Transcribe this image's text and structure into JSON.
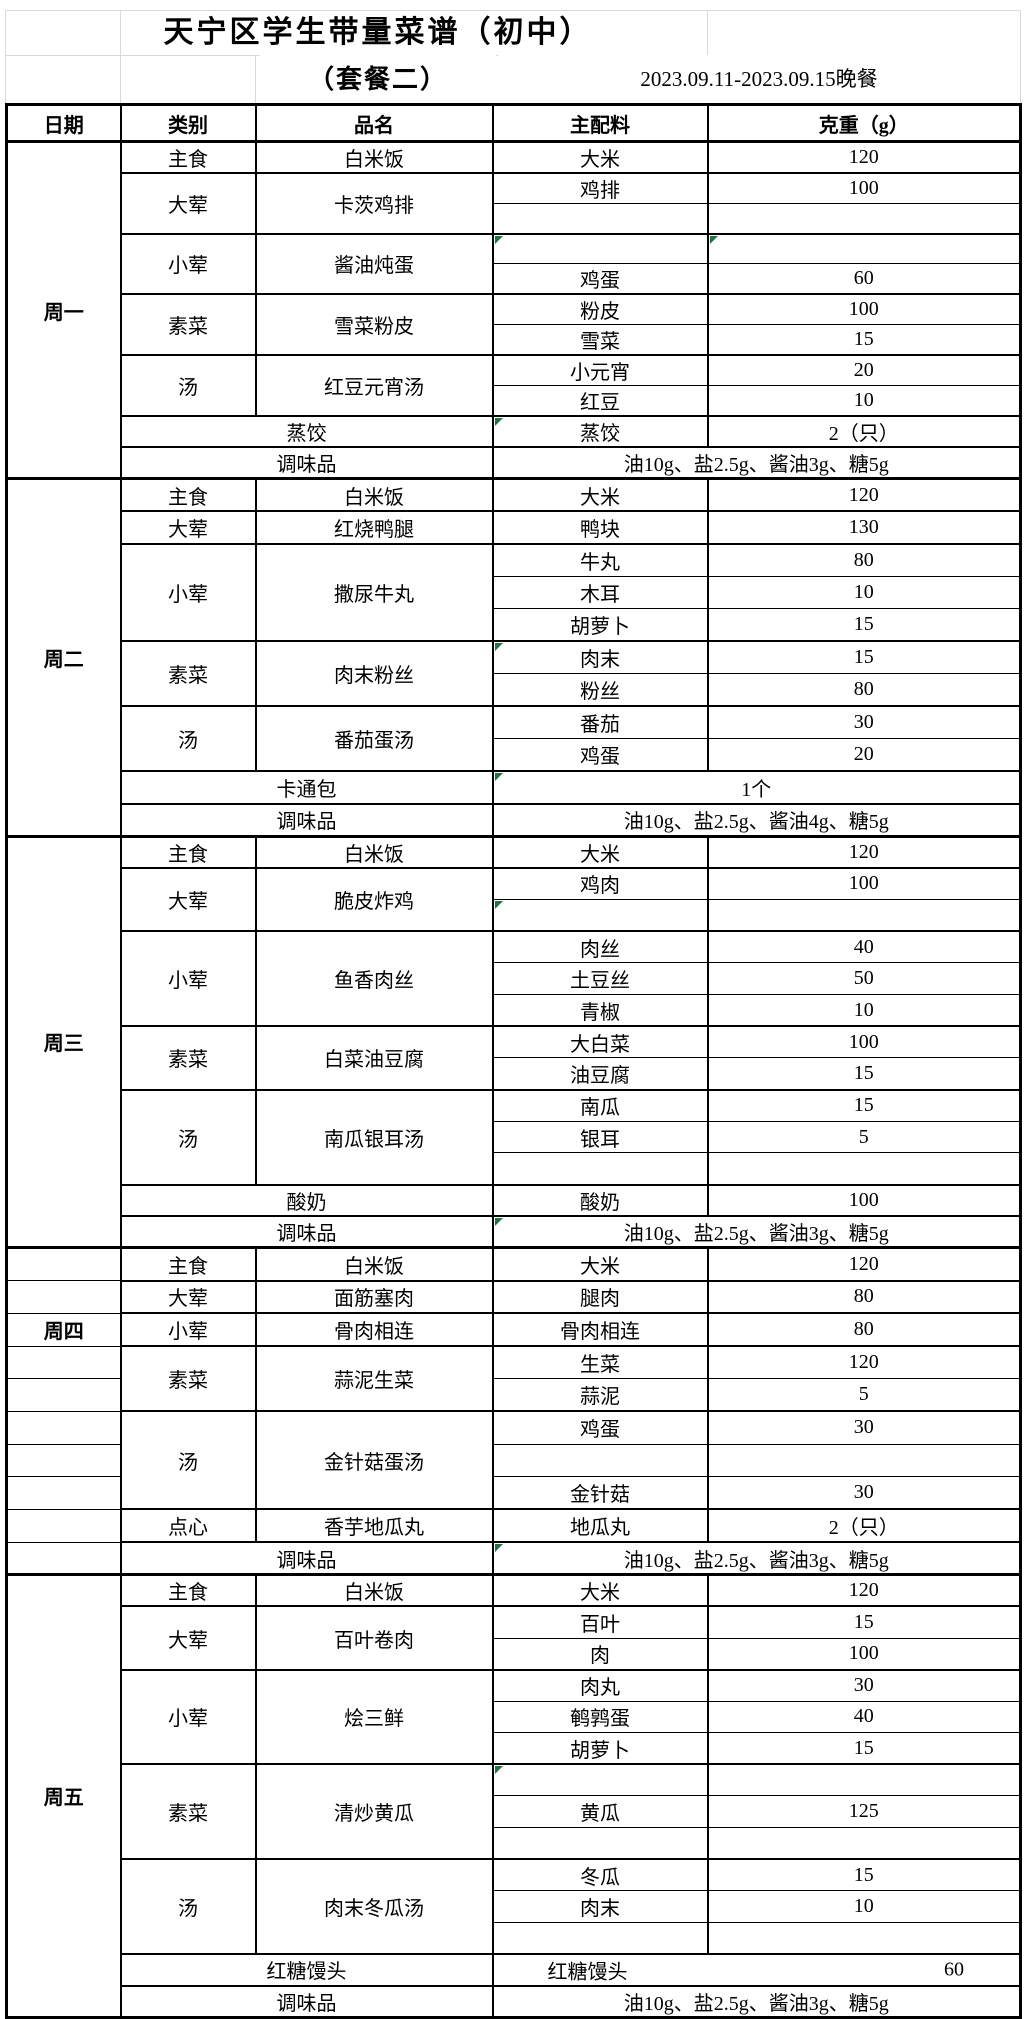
{
  "page": {
    "title": "天宁区学生带量菜谱（初中）",
    "subtitle": "（套餐二）",
    "date_range": "2023.09.11-2023.09.15晚餐"
  },
  "colors": {
    "border_black": "#000000",
    "grid_light_gray": "#d9d9d9",
    "error_marker_green": "#217346",
    "background": "#ffffff"
  },
  "table": {
    "columns": [
      "日期",
      "类别",
      "品名",
      "主配料",
      "克重（g）"
    ],
    "days": [
      {
        "day": "周一",
        "groups": [
          {
            "category": "主食",
            "dish": "白米饭",
            "rows": [
              {
                "ingredient": "大米",
                "weight": "120"
              }
            ]
          },
          {
            "category": "大荤",
            "dish": "卡茨鸡排",
            "rows": [
              {
                "ingredient": "鸡排",
                "weight": "100"
              },
              {
                "ingredient": "",
                "weight": ""
              }
            ]
          },
          {
            "category": "小荤",
            "dish": "酱油炖蛋",
            "rows": [
              {
                "ingredient": "",
                "weight": "",
                "err_ingredient": true,
                "err_weight": true
              },
              {
                "ingredient": "鸡蛋",
                "weight": "60"
              }
            ]
          },
          {
            "category": "素菜",
            "dish": "雪菜粉皮",
            "rows": [
              {
                "ingredient": "粉皮",
                "weight": "100"
              },
              {
                "ingredient": "雪菜",
                "weight": "15"
              }
            ]
          },
          {
            "category": "汤",
            "dish": "红豆元宵汤",
            "rows": [
              {
                "ingredient": "小元宵",
                "weight": "20"
              },
              {
                "ingredient": "红豆",
                "weight": "10"
              }
            ]
          }
        ],
        "extras": [
          {
            "label": "蒸饺",
            "ingredient": "蒸饺",
            "weight": "2（只）",
            "err_ingredient": true
          },
          {
            "label": "调味品",
            "merged": "油10g、盐2.5g、酱油3g、糖5g"
          }
        ]
      },
      {
        "day": "周二",
        "groups": [
          {
            "category": "主食",
            "dish": "白米饭",
            "rows": [
              {
                "ingredient": "大米",
                "weight": "120"
              }
            ]
          },
          {
            "category": "大荤",
            "dish": "红烧鸭腿",
            "rows": [
              {
                "ingredient": "鸭块",
                "weight": "130"
              }
            ]
          },
          {
            "category": "小荤",
            "dish": "撒尿牛丸",
            "rows": [
              {
                "ingredient": "牛丸",
                "weight": "80"
              },
              {
                "ingredient": "木耳",
                "weight": "10"
              },
              {
                "ingredient": "胡萝卜",
                "weight": "15"
              }
            ]
          },
          {
            "category": "素菜",
            "dish": "肉末粉丝",
            "rows": [
              {
                "ingredient": "肉末",
                "weight": "15",
                "err_ingredient": true
              },
              {
                "ingredient": "粉丝",
                "weight": "80"
              }
            ]
          },
          {
            "category": "汤",
            "dish": "番茄蛋汤",
            "rows": [
              {
                "ingredient": "番茄",
                "weight": "30"
              },
              {
                "ingredient": "鸡蛋",
                "weight": "20"
              }
            ]
          }
        ],
        "extras": [
          {
            "label": "卡通包",
            "merged": "1个",
            "err_merged": true
          },
          {
            "label": "调味品",
            "merged": "油10g、盐2.5g、酱油4g、糖5g"
          }
        ]
      },
      {
        "day": "周三",
        "groups": [
          {
            "category": "主食",
            "dish": "白米饭",
            "rows": [
              {
                "ingredient": "大米",
                "weight": "120"
              }
            ]
          },
          {
            "category": "大荤",
            "dish": "脆皮炸鸡",
            "rows": [
              {
                "ingredient": "鸡肉",
                "weight": "100"
              },
              {
                "ingredient": "",
                "weight": "",
                "err_ingredient": true
              }
            ]
          },
          {
            "category": "小荤",
            "dish": "鱼香肉丝",
            "rows": [
              {
                "ingredient": "肉丝",
                "weight": "40"
              },
              {
                "ingredient": "土豆丝",
                "weight": "50"
              },
              {
                "ingredient": "青椒",
                "weight": "10"
              }
            ]
          },
          {
            "category": "素菜",
            "dish": "白菜油豆腐",
            "rows": [
              {
                "ingredient": "大白菜",
                "weight": "100"
              },
              {
                "ingredient": "油豆腐",
                "weight": "15"
              }
            ]
          },
          {
            "category": "汤",
            "dish": "南瓜银耳汤",
            "rows": [
              {
                "ingredient": "南瓜",
                "weight": "15"
              },
              {
                "ingredient": "银耳",
                "weight": "5"
              },
              {
                "ingredient": "",
                "weight": ""
              }
            ]
          }
        ],
        "extras": [
          {
            "label": "酸奶",
            "ingredient": "酸奶",
            "weight": "100"
          },
          {
            "label": "调味品",
            "merged": "油10g、盐2.5g、酱油3g、糖5g",
            "err_merged": true
          }
        ]
      },
      {
        "day": "周四",
        "date_column_unmerged": true,
        "date_label_row": 2,
        "groups": [
          {
            "category": "主食",
            "dish": "白米饭",
            "rows": [
              {
                "ingredient": "大米",
                "weight": "120"
              }
            ]
          },
          {
            "category": "大荤",
            "dish": "面筋塞肉",
            "rows": [
              {
                "ingredient": "腿肉",
                "weight": "80"
              }
            ]
          },
          {
            "category": "小荤",
            "dish": "骨肉相连",
            "rows": [
              {
                "ingredient": "骨肉相连",
                "weight": "80"
              }
            ]
          },
          {
            "category": "素菜",
            "dish": "蒜泥生菜",
            "rows": [
              {
                "ingredient": "生菜",
                "weight": "120"
              },
              {
                "ingredient": "蒜泥",
                "weight": "5"
              }
            ]
          },
          {
            "category": "汤",
            "dish": "金针菇蛋汤",
            "rows": [
              {
                "ingredient": "鸡蛋",
                "weight": "30"
              },
              {
                "ingredient": "",
                "weight": ""
              },
              {
                "ingredient": "金针菇",
                "weight": "30"
              }
            ]
          },
          {
            "category": "点心",
            "dish": "香芋地瓜丸",
            "rows": [
              {
                "ingredient": "地瓜丸",
                "weight": "2（只）"
              }
            ]
          }
        ],
        "extras": [
          {
            "label": "调味品",
            "merged": "油10g、盐2.5g、酱油3g、糖5g",
            "err_merged": true
          }
        ]
      },
      {
        "day": "周五",
        "groups": [
          {
            "category": "主食",
            "dish": "白米饭",
            "rows": [
              {
                "ingredient": "大米",
                "weight": "120"
              }
            ]
          },
          {
            "category": "大荤",
            "dish": "百叶卷肉",
            "rows": [
              {
                "ingredient": "百叶",
                "weight": "15"
              },
              {
                "ingredient": "肉",
                "weight": "100"
              }
            ]
          },
          {
            "category": "小荤",
            "dish": "烩三鲜",
            "rows": [
              {
                "ingredient": "肉丸",
                "weight": "30"
              },
              {
                "ingredient": "鹌鹑蛋",
                "weight": "40"
              },
              {
                "ingredient": "胡萝卜",
                "weight": "15"
              }
            ]
          },
          {
            "category": "素菜",
            "dish": "清炒黄瓜",
            "rows": [
              {
                "ingredient": "",
                "weight": "",
                "err_ingredient": true
              },
              {
                "ingredient": "黄瓜",
                "weight": "125"
              },
              {
                "ingredient": "",
                "weight": ""
              }
            ]
          },
          {
            "category": "汤",
            "dish": "肉末冬瓜汤",
            "rows": [
              {
                "ingredient": "冬瓜",
                "weight": "15"
              },
              {
                "ingredient": "肉末",
                "weight": "10"
              },
              {
                "ingredient": "",
                "weight": ""
              }
            ]
          }
        ],
        "extras": [
          {
            "label": "红糖馒头",
            "split_left": "红糖馒头",
            "split_right": "60"
          },
          {
            "label": "调味品",
            "merged": "油10g、盐2.5g、酱油3g、糖5g"
          }
        ]
      }
    ]
  }
}
